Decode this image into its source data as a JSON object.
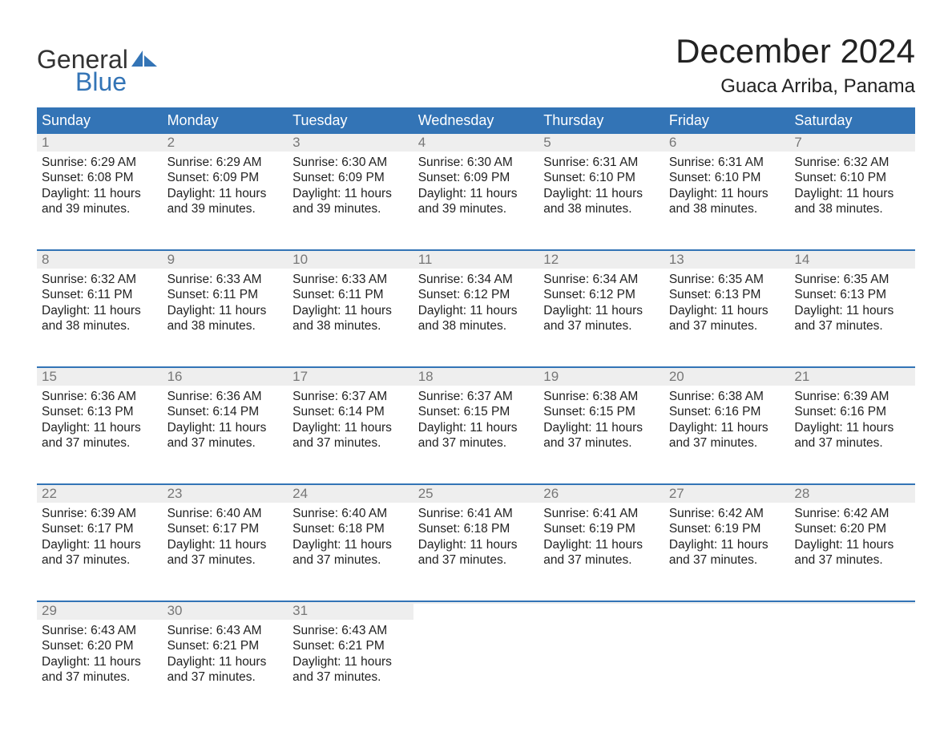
{
  "logo": {
    "top": "General",
    "bottom": "Blue",
    "mark_color": "#3374b6"
  },
  "title": "December 2024",
  "location": "Guaca Arriba, Panama",
  "colors": {
    "header_bg": "#3374b6",
    "header_text": "#ffffff",
    "daynum_bg": "#eeeeee",
    "daynum_text": "#777777",
    "week_border": "#3374b6",
    "body_text": "#222222"
  },
  "weekdays": [
    "Sunday",
    "Monday",
    "Tuesday",
    "Wednesday",
    "Thursday",
    "Friday",
    "Saturday"
  ],
  "weeks": [
    [
      {
        "n": "1",
        "sr": "6:29 AM",
        "ss": "6:08 PM",
        "dh": "11",
        "dm": "39"
      },
      {
        "n": "2",
        "sr": "6:29 AM",
        "ss": "6:09 PM",
        "dh": "11",
        "dm": "39"
      },
      {
        "n": "3",
        "sr": "6:30 AM",
        "ss": "6:09 PM",
        "dh": "11",
        "dm": "39"
      },
      {
        "n": "4",
        "sr": "6:30 AM",
        "ss": "6:09 PM",
        "dh": "11",
        "dm": "39"
      },
      {
        "n": "5",
        "sr": "6:31 AM",
        "ss": "6:10 PM",
        "dh": "11",
        "dm": "38"
      },
      {
        "n": "6",
        "sr": "6:31 AM",
        "ss": "6:10 PM",
        "dh": "11",
        "dm": "38"
      },
      {
        "n": "7",
        "sr": "6:32 AM",
        "ss": "6:10 PM",
        "dh": "11",
        "dm": "38"
      }
    ],
    [
      {
        "n": "8",
        "sr": "6:32 AM",
        "ss": "6:11 PM",
        "dh": "11",
        "dm": "38"
      },
      {
        "n": "9",
        "sr": "6:33 AM",
        "ss": "6:11 PM",
        "dh": "11",
        "dm": "38"
      },
      {
        "n": "10",
        "sr": "6:33 AM",
        "ss": "6:11 PM",
        "dh": "11",
        "dm": "38"
      },
      {
        "n": "11",
        "sr": "6:34 AM",
        "ss": "6:12 PM",
        "dh": "11",
        "dm": "38"
      },
      {
        "n": "12",
        "sr": "6:34 AM",
        "ss": "6:12 PM",
        "dh": "11",
        "dm": "37"
      },
      {
        "n": "13",
        "sr": "6:35 AM",
        "ss": "6:13 PM",
        "dh": "11",
        "dm": "37"
      },
      {
        "n": "14",
        "sr": "6:35 AM",
        "ss": "6:13 PM",
        "dh": "11",
        "dm": "37"
      }
    ],
    [
      {
        "n": "15",
        "sr": "6:36 AM",
        "ss": "6:13 PM",
        "dh": "11",
        "dm": "37"
      },
      {
        "n": "16",
        "sr": "6:36 AM",
        "ss": "6:14 PM",
        "dh": "11",
        "dm": "37"
      },
      {
        "n": "17",
        "sr": "6:37 AM",
        "ss": "6:14 PM",
        "dh": "11",
        "dm": "37"
      },
      {
        "n": "18",
        "sr": "6:37 AM",
        "ss": "6:15 PM",
        "dh": "11",
        "dm": "37"
      },
      {
        "n": "19",
        "sr": "6:38 AM",
        "ss": "6:15 PM",
        "dh": "11",
        "dm": "37"
      },
      {
        "n": "20",
        "sr": "6:38 AM",
        "ss": "6:16 PM",
        "dh": "11",
        "dm": "37"
      },
      {
        "n": "21",
        "sr": "6:39 AM",
        "ss": "6:16 PM",
        "dh": "11",
        "dm": "37"
      }
    ],
    [
      {
        "n": "22",
        "sr": "6:39 AM",
        "ss": "6:17 PM",
        "dh": "11",
        "dm": "37"
      },
      {
        "n": "23",
        "sr": "6:40 AM",
        "ss": "6:17 PM",
        "dh": "11",
        "dm": "37"
      },
      {
        "n": "24",
        "sr": "6:40 AM",
        "ss": "6:18 PM",
        "dh": "11",
        "dm": "37"
      },
      {
        "n": "25",
        "sr": "6:41 AM",
        "ss": "6:18 PM",
        "dh": "11",
        "dm": "37"
      },
      {
        "n": "26",
        "sr": "6:41 AM",
        "ss": "6:19 PM",
        "dh": "11",
        "dm": "37"
      },
      {
        "n": "27",
        "sr": "6:42 AM",
        "ss": "6:19 PM",
        "dh": "11",
        "dm": "37"
      },
      {
        "n": "28",
        "sr": "6:42 AM",
        "ss": "6:20 PM",
        "dh": "11",
        "dm": "37"
      }
    ],
    [
      {
        "n": "29",
        "sr": "6:43 AM",
        "ss": "6:20 PM",
        "dh": "11",
        "dm": "37"
      },
      {
        "n": "30",
        "sr": "6:43 AM",
        "ss": "6:21 PM",
        "dh": "11",
        "dm": "37"
      },
      {
        "n": "31",
        "sr": "6:43 AM",
        "ss": "6:21 PM",
        "dh": "11",
        "dm": "37"
      },
      null,
      null,
      null,
      null
    ]
  ],
  "labels": {
    "sunrise": "Sunrise: ",
    "sunset": "Sunset: ",
    "daylight_a": "Daylight: ",
    "daylight_b": " hours and ",
    "daylight_c": " minutes."
  }
}
